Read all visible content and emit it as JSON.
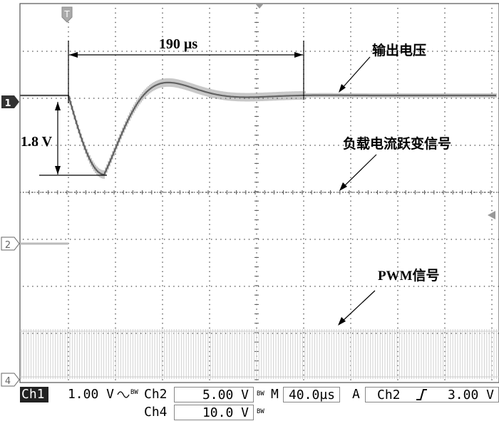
{
  "screen": {
    "background": "#ffffff",
    "grid_color": "#555555",
    "trace_color": "#555555",
    "pwm_color": "#cccccc"
  },
  "markers": {
    "trigger_position": "T",
    "ch1": "1",
    "ch2": "2",
    "ch4": "4"
  },
  "annotations": {
    "time_span": "190 µs",
    "voltage_drop": "1.8 V",
    "output_voltage": "输出电压",
    "load_step": "负载电流跃变信号",
    "pwm": "PWM信号"
  },
  "status": {
    "ch1_label": "Ch1",
    "ch1_scale": "1.00 V",
    "ch1_coupling_icon": "ac-coupling-icon",
    "bw_mark": "BW",
    "ch2_label": "Ch2",
    "ch2_scale": "5.00 V",
    "ch4_label": "Ch4",
    "ch4_scale": "10.0 V",
    "timebase_label": "M",
    "timebase_value": "40.0µs",
    "trigger_label": "A",
    "trigger_source": "Ch2",
    "trigger_slope_icon": "rising-edge-icon",
    "trigger_level": "3.00 V"
  }
}
